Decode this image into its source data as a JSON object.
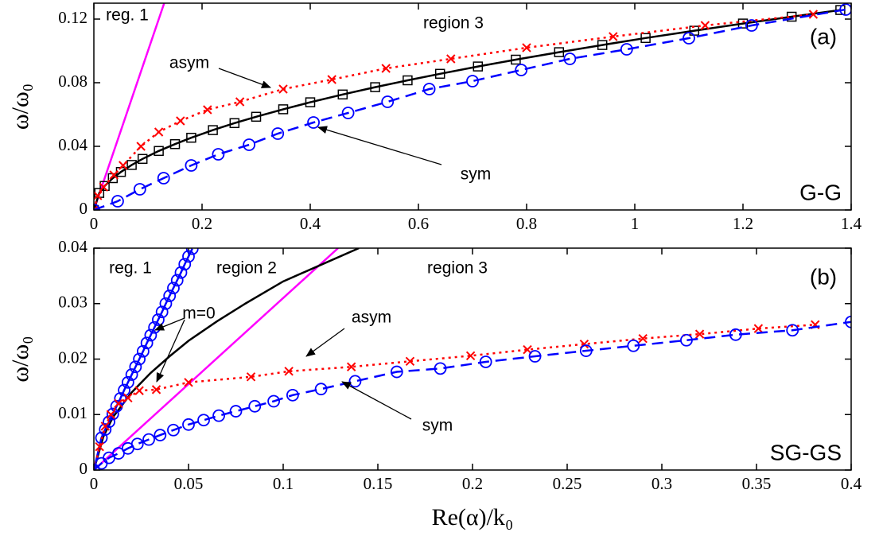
{
  "chart_data": [
    {
      "type": "line",
      "panel": "(a)",
      "label": "G-G",
      "ylabel": "ω/ω₀",
      "xlim": [
        0,
        1.4
      ],
      "xticks": [
        0,
        0.2,
        0.4,
        0.6,
        0.8,
        1,
        1.2,
        1.4
      ],
      "ylim": [
        0,
        0.13
      ],
      "yticks": [
        0,
        0.04,
        0.08,
        0.12
      ],
      "annotations": [
        "reg. 1",
        "region 3",
        "asym",
        "sym"
      ],
      "series": [
        {
          "color": "#ff00ff",
          "linestyle": "solid",
          "marker": "none",
          "x": [
            0,
            0.13
          ],
          "values": [
            0,
            0.13
          ]
        },
        {
          "color": "#000000",
          "linestyle": "solid",
          "marker": "square",
          "x": [
            0,
            0.01,
            0.02,
            0.035,
            0.05,
            0.07,
            0.09,
            0.12,
            0.15,
            0.18,
            0.22,
            0.26,
            0.3,
            0.35,
            0.4,
            0.46,
            0.52,
            0.58,
            0.64,
            0.71,
            0.78,
            0.86,
            0.94,
            1.02,
            1.11,
            1.2,
            1.29,
            1.38
          ],
          "values": [
            0,
            0.0107,
            0.0151,
            0.02,
            0.0239,
            0.0283,
            0.0321,
            0.0371,
            0.0414,
            0.0454,
            0.0502,
            0.0546,
            0.0586,
            0.0633,
            0.0677,
            0.0726,
            0.0772,
            0.0815,
            0.0856,
            0.0902,
            0.0945,
            0.0992,
            0.1037,
            0.1081,
            0.1127,
            0.1172,
            0.1215,
            0.1257
          ]
        },
        {
          "color": "#ff0000",
          "linestyle": "dotted",
          "marker": "x",
          "x": [
            0,
            0.007,
            0.018,
            0.037,
            0.054,
            0.087,
            0.12,
            0.16,
            0.21,
            0.27,
            0.35,
            0.44,
            0.54,
            0.66,
            0.8,
            0.96,
            1.13,
            1.33
          ],
          "values": [
            0,
            0.009,
            0.0144,
            0.022,
            0.028,
            0.04,
            0.049,
            0.056,
            0.063,
            0.068,
            0.076,
            0.082,
            0.089,
            0.095,
            0.102,
            0.109,
            0.116,
            0.123
          ]
        },
        {
          "color": "#0000ff",
          "linestyle": "dashed",
          "marker": "circle",
          "x": [
            0,
            0.044,
            0.085,
            0.129,
            0.18,
            0.23,
            0.287,
            0.34,
            0.406,
            0.47,
            0.543,
            0.62,
            0.7,
            0.79,
            0.88,
            0.985,
            1.1,
            1.216,
            1.39
          ],
          "values": [
            0,
            0.0055,
            0.013,
            0.02,
            0.028,
            0.035,
            0.041,
            0.048,
            0.055,
            0.061,
            0.068,
            0.076,
            0.081,
            0.088,
            0.095,
            0.101,
            0.108,
            0.116,
            0.126
          ]
        }
      ]
    },
    {
      "type": "line",
      "panel": "(b)",
      "label": "SG-GS",
      "ylabel": "ω/ω₀",
      "xlabel": "Re(α)/k₀",
      "xlim": [
        0,
        0.4
      ],
      "xticks": [
        0,
        0.05,
        0.1,
        0.15,
        0.2,
        0.25,
        0.3,
        0.35,
        0.4
      ],
      "ylim": [
        0,
        0.04
      ],
      "yticks": [
        0,
        0.01,
        0.02,
        0.03,
        0.04
      ],
      "annotations": [
        "reg. 1",
        "region 2",
        "region 3",
        "m=0",
        "asym",
        "sym"
      ],
      "series": [
        {
          "color": "#ff00ff",
          "linestyle": "solid",
          "marker": "none",
          "x": [
            0,
            0.129
          ],
          "values": [
            0,
            0.04
          ]
        },
        {
          "color": "#000000",
          "linestyle": "solid",
          "marker": "none",
          "x": [
            0,
            0.005,
            0.01,
            0.02,
            0.03,
            0.04,
            0.05,
            0.065,
            0.08,
            0.1,
            0.12,
            0.14
          ],
          "values": [
            0,
            0.006,
            0.0095,
            0.014,
            0.0175,
            0.0205,
            0.0233,
            0.0268,
            0.03,
            0.034,
            0.037,
            0.04
          ]
        },
        {
          "color": "#0000ff",
          "linestyle": "solid",
          "marker": "circle",
          "x": [
            0,
            0.004,
            0.006,
            0.008,
            0.01,
            0.012,
            0.014,
            0.016,
            0.018,
            0.02,
            0.022,
            0.024,
            0.026,
            0.028,
            0.03,
            0.032,
            0.034,
            0.036,
            0.038,
            0.04,
            0.042,
            0.044,
            0.046,
            0.048,
            0.05,
            0.052
          ],
          "values": [
            0,
            0.0058,
            0.0073,
            0.0087,
            0.0101,
            0.0115,
            0.0129,
            0.0144,
            0.0158,
            0.0172,
            0.0186,
            0.02,
            0.0214,
            0.0229,
            0.0243,
            0.0257,
            0.0271,
            0.0285,
            0.03,
            0.0314,
            0.0328,
            0.0342,
            0.0356,
            0.0371,
            0.0385,
            0.0399
          ]
        },
        {
          "color": "#ff0000",
          "linestyle": "dotted",
          "marker": "x",
          "x": [
            0,
            0.003,
            0.006,
            0.009,
            0.013,
            0.018,
            0.024,
            0.033,
            0.05,
            0.083,
            0.103,
            0.136,
            0.167,
            0.199,
            0.229,
            0.259,
            0.29,
            0.32,
            0.351,
            0.381
          ],
          "values": [
            0,
            0.0042,
            0.0079,
            0.01,
            0.012,
            0.013,
            0.0143,
            0.0145,
            0.0158,
            0.0168,
            0.0178,
            0.0186,
            0.0196,
            0.0206,
            0.0217,
            0.0227,
            0.0237,
            0.0245,
            0.0255,
            0.0262
          ]
        },
        {
          "color": "#0000ff",
          "linestyle": "dashed",
          "marker": "circle",
          "x": [
            0,
            0.004,
            0.008,
            0.013,
            0.018,
            0.023,
            0.029,
            0.035,
            0.042,
            0.05,
            0.058,
            0.066,
            0.075,
            0.085,
            0.095,
            0.105,
            0.12,
            0.138,
            0.16,
            0.183,
            0.207,
            0.233,
            0.26,
            0.285,
            0.313,
            0.339,
            0.369,
            0.4
          ],
          "values": [
            0,
            0.0012,
            0.0022,
            0.003,
            0.0039,
            0.0047,
            0.0055,
            0.0063,
            0.0072,
            0.0082,
            0.009,
            0.0098,
            0.0106,
            0.0115,
            0.0124,
            0.0135,
            0.0146,
            0.016,
            0.0177,
            0.0183,
            0.0195,
            0.0205,
            0.0215,
            0.0224,
            0.0234,
            0.0244,
            0.0252,
            0.0267
          ]
        }
      ]
    }
  ]
}
